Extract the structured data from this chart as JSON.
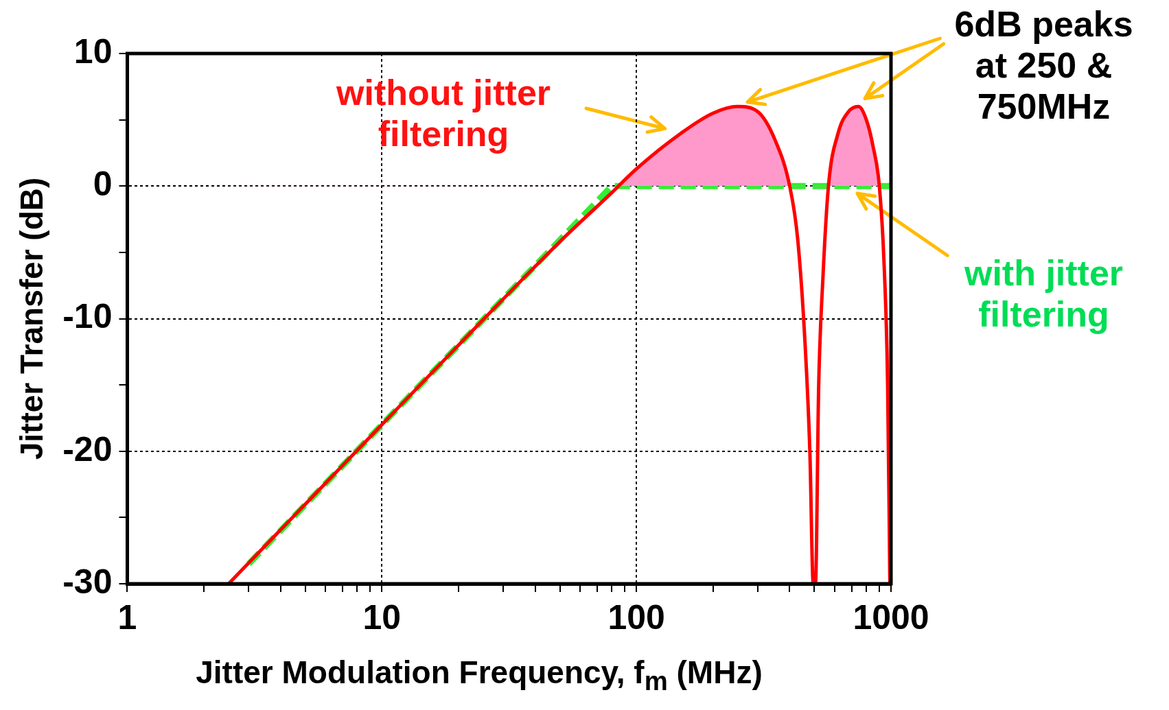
{
  "chart_data": {
    "type": "line",
    "xlabel": "Jitter Modulation Frequency, f$_{m}$ (MHz)",
    "ylabel": "Jitter Transfer (dB)",
    "log": "x",
    "xlim": [
      1,
      1000
    ],
    "xticks": [
      1,
      {
        "value": 2,
        "label": null
      },
      {
        "value": 3,
        "label": null
      },
      {
        "value": 4,
        "label": null
      },
      {
        "value": 5,
        "label": null
      },
      {
        "value": 6,
        "label": null
      },
      {
        "value": 7,
        "label": null
      },
      {
        "value": 8,
        "label": null
      },
      {
        "value": 9,
        "label": null
      },
      10,
      {
        "value": 20,
        "label": null
      },
      {
        "value": 30,
        "label": null
      },
      {
        "value": 40,
        "label": null
      },
      {
        "value": 50,
        "label": null
      },
      {
        "value": 60,
        "label": null
      },
      {
        "value": 70,
        "label": null
      },
      {
        "value": 80,
        "label": null
      },
      {
        "value": 90,
        "label": null
      },
      100,
      {
        "value": 200,
        "label": null
      },
      {
        "value": 300,
        "label": null
      },
      {
        "value": 400,
        "label": null
      },
      {
        "value": 500,
        "label": null
      },
      {
        "value": 600,
        "label": null
      },
      {
        "value": 700,
        "label": null
      },
      {
        "value": 800,
        "label": null
      },
      {
        "value": 900,
        "label": null
      },
      1000
    ],
    "ylim": [
      -30,
      10
    ],
    "yticks": [
      -30,
      {
        "value": -25,
        "label": null
      },
      -20,
      {
        "value": -15,
        "label": null
      },
      -10,
      {
        "value": -5,
        "label": null
      },
      0,
      {
        "value": 5,
        "label": null
      },
      10
    ],
    "grid": true,
    "legend": false,
    "series": [
      {
        "type": "area",
        "color": "#ff0000",
        "line_style": "solid",
        "x": [
          2.5,
          5,
          10,
          20,
          50,
          80,
          100,
          150,
          200,
          250,
          300,
          350,
          400,
          430,
          460,
          480,
          495,
          505,
          520,
          540,
          568,
          620,
          680,
          745,
          800,
          850,
          900,
          940,
          970,
          990
        ],
        "values": [
          -30,
          -24,
          -18,
          -12,
          -4.2,
          -0.5,
          1.3,
          4,
          5.5,
          6,
          5.6,
          3.5,
          0,
          -4,
          -12,
          -20,
          -30,
          -30,
          -15,
          -7,
          0,
          4,
          5.6,
          6,
          5,
          3,
          0,
          -6,
          -15,
          -30
        ]
      },
      {
        "type": "line",
        "color": "#33ee33",
        "line_style": "dashed",
        "x": [
          3,
          10,
          30,
          80,
          1000
        ],
        "values": [
          -28.5,
          -18,
          -8.5,
          0,
          0
        ]
      }
    ],
    "annotations": [
      "without jitter filtering",
      "6dB peaks at 250 & 750MHz",
      "with jitter filtering"
    ]
  }
}
